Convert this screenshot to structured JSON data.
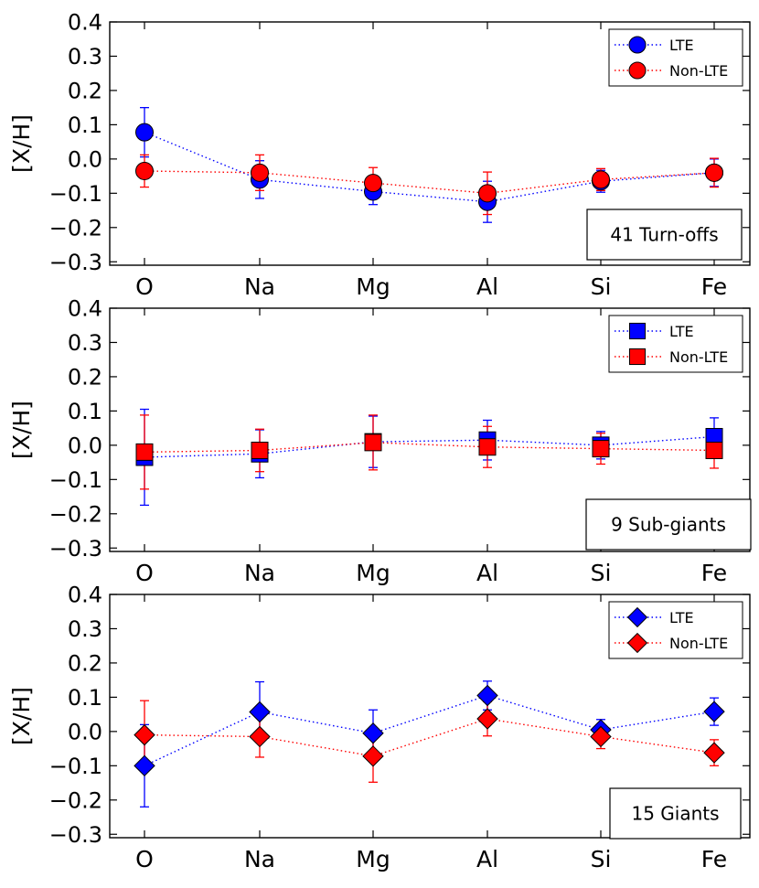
{
  "chart_data": [
    {
      "type": "scatter",
      "panel_label": "41 Turn-offs",
      "ylabel": "[X/H]",
      "categories": [
        "O",
        "Na",
        "Mg",
        "Al",
        "Si",
        "Fe"
      ],
      "ylim": [
        -0.31,
        0.4
      ],
      "yticks": [
        "0.4",
        "0.3",
        "0.2",
        "0.1",
        "0.0",
        "−0.1",
        "−0.2",
        "−0.3"
      ],
      "ytick_values": [
        0.4,
        0.3,
        0.2,
        0.1,
        0.0,
        -0.1,
        -0.2,
        -0.3
      ],
      "marker": "circle",
      "legend_position": "top-right",
      "series": [
        {
          "name": "LTE",
          "color": "#0000ff",
          "values": [
            0.078,
            -0.06,
            -0.095,
            -0.125,
            -0.065,
            -0.04
          ],
          "errors": [
            0.072,
            0.055,
            0.038,
            0.06,
            0.032,
            0.04
          ]
        },
        {
          "name": "Non-LTE",
          "color": "#ff0000",
          "values": [
            -0.035,
            -0.04,
            -0.07,
            -0.1,
            -0.06,
            -0.04
          ],
          "errors": [
            0.047,
            0.052,
            0.045,
            0.062,
            0.032,
            0.042
          ]
        }
      ]
    },
    {
      "type": "scatter",
      "panel_label": "9 Sub-giants",
      "ylabel": "[X/H]",
      "categories": [
        "O",
        "Na",
        "Mg",
        "Al",
        "Si",
        "Fe"
      ],
      "ylim": [
        -0.31,
        0.4
      ],
      "yticks": [
        "0.4",
        "0.3",
        "0.2",
        "0.1",
        "0.0",
        "−0.1",
        "−0.2",
        "−0.3"
      ],
      "ytick_values": [
        0.4,
        0.3,
        0.2,
        0.1,
        0.0,
        -0.1,
        -0.2,
        -0.3
      ],
      "marker": "square",
      "legend_position": "top-right",
      "series": [
        {
          "name": "LTE",
          "color": "#0000ff",
          "values": [
            -0.035,
            -0.025,
            0.01,
            0.015,
            0.0,
            0.025
          ],
          "errors": [
            0.14,
            0.07,
            0.075,
            0.058,
            0.04,
            0.055
          ]
        },
        {
          "name": "Non-LTE",
          "color": "#ff0000",
          "values": [
            -0.02,
            -0.015,
            0.008,
            -0.005,
            -0.01,
            -0.015
          ],
          "errors": [
            0.108,
            0.062,
            0.08,
            0.06,
            0.045,
            0.052
          ]
        }
      ]
    },
    {
      "type": "scatter",
      "panel_label": "15 Giants",
      "ylabel": "[X/H]",
      "categories": [
        "O",
        "Na",
        "Mg",
        "Al",
        "Si",
        "Fe"
      ],
      "ylim": [
        -0.31,
        0.4
      ],
      "yticks": [
        "0.4",
        "0.3",
        "0.2",
        "0.1",
        "0.0",
        "−0.1",
        "−0.2",
        "−0.3"
      ],
      "ytick_values": [
        0.4,
        0.3,
        0.2,
        0.1,
        0.0,
        -0.1,
        -0.2,
        -0.3
      ],
      "marker": "diamond",
      "legend_position": "top-right",
      "series": [
        {
          "name": "LTE",
          "color": "#0000ff",
          "values": [
            -0.1,
            0.057,
            -0.005,
            0.105,
            0.005,
            0.058
          ],
          "errors": [
            0.12,
            0.088,
            0.068,
            0.042,
            0.03,
            0.04
          ]
        },
        {
          "name": "Non-LTE",
          "color": "#ff0000",
          "values": [
            -0.01,
            -0.015,
            -0.072,
            0.037,
            -0.015,
            -0.062
          ],
          "errors": [
            0.1,
            0.06,
            0.076,
            0.05,
            0.035,
            0.038
          ]
        }
      ]
    }
  ]
}
